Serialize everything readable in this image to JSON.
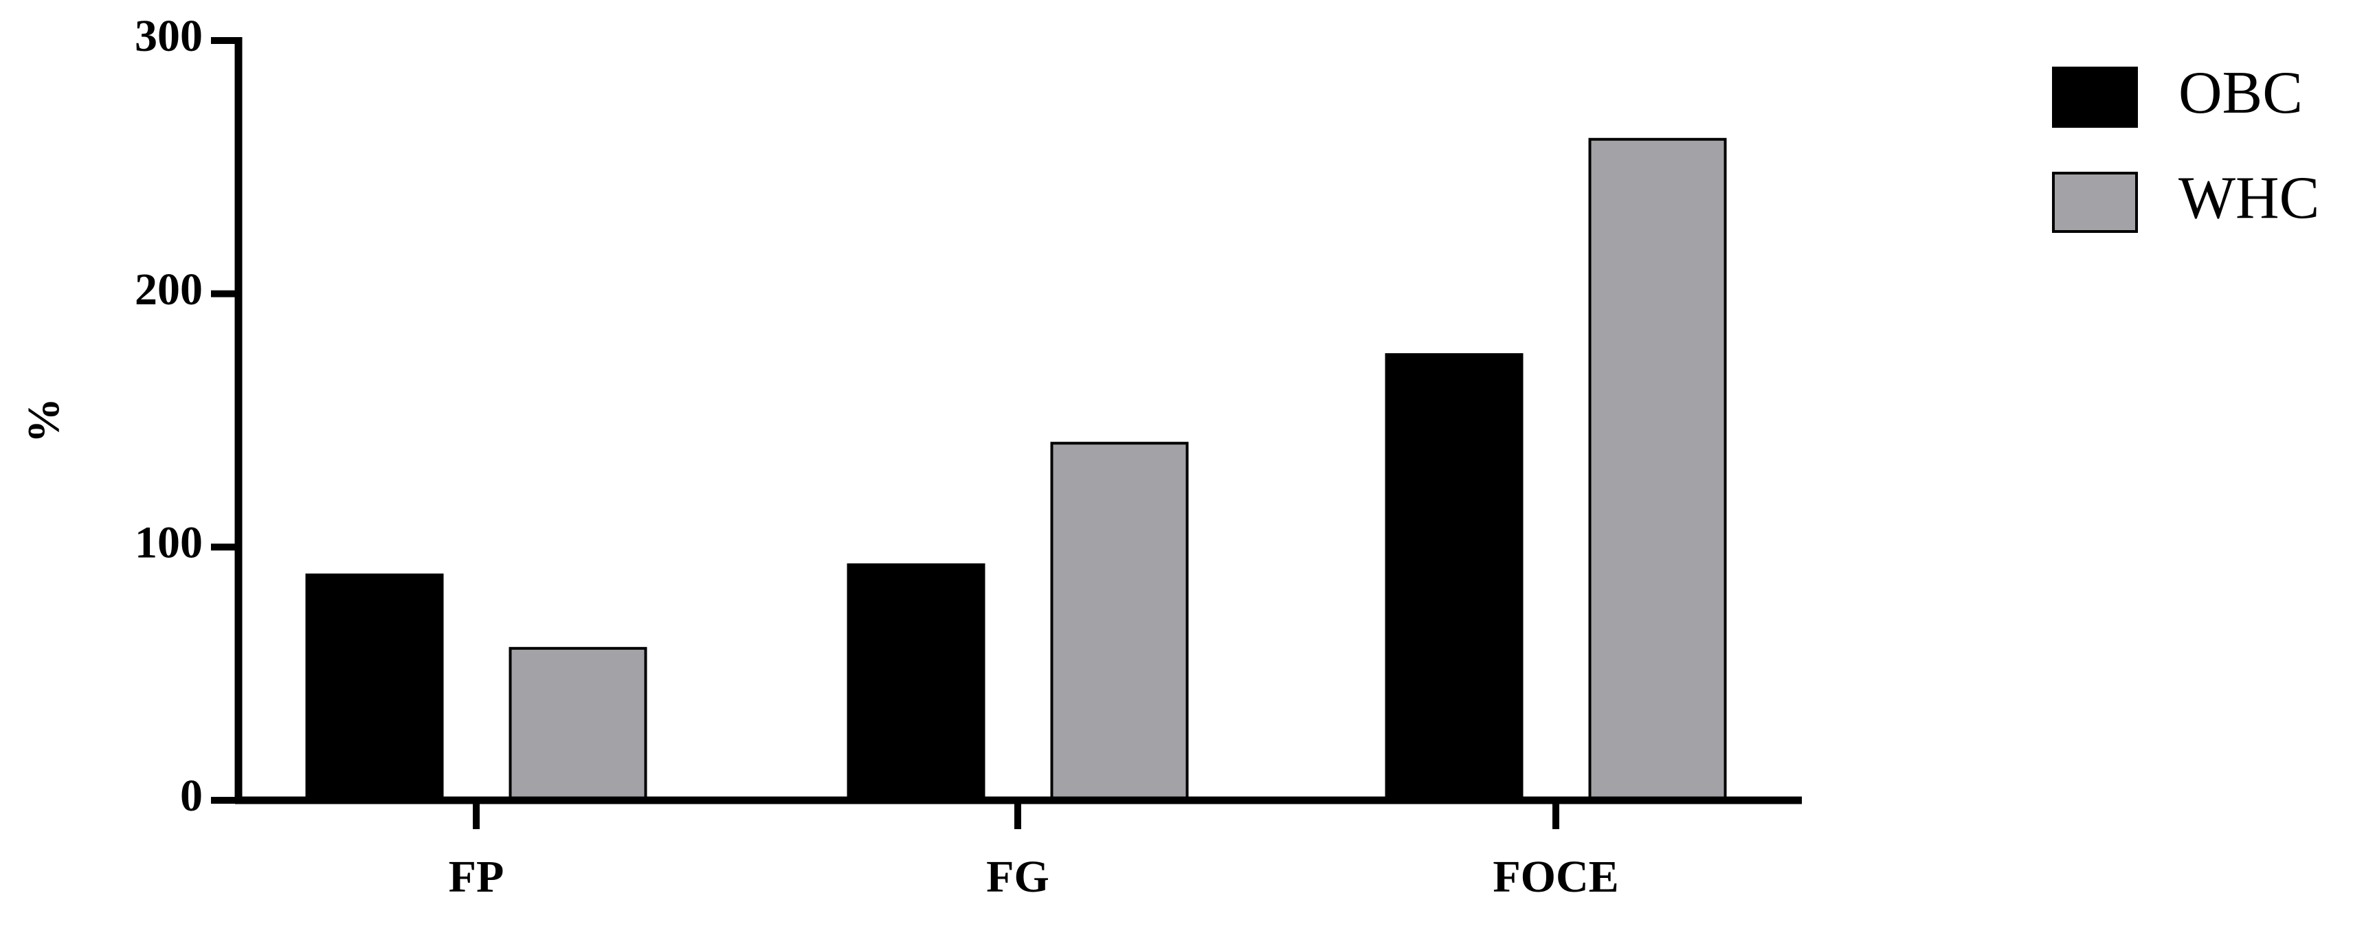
{
  "chart_data": {
    "type": "bar",
    "y_label": "%",
    "categories": [
      "FP",
      "FG",
      "FOCE"
    ],
    "series": [
      {
        "name": "OBC",
        "color": "#000000",
        "values": [
          89,
          93,
          176
        ]
      },
      {
        "name": "WHC",
        "color": "#a3a2a7",
        "values": [
          60,
          141,
          261
        ]
      }
    ],
    "ylim": [
      0,
      300
    ],
    "yticks": [
      0,
      100,
      200,
      300
    ],
    "grid": false,
    "legend": "upper right"
  }
}
